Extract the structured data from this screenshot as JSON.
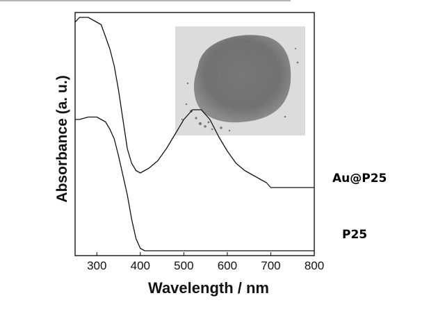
{
  "chart_data": {
    "type": "line",
    "title": "",
    "xlabel": "Wavelength / nm",
    "ylabel": "Absorbance (a. u.)",
    "xlim": [
      250,
      800
    ],
    "ylim": [
      0,
      1
    ],
    "x_ticks": [
      300,
      400,
      500,
      600,
      700,
      800
    ],
    "y_ticks": [],
    "grid": false,
    "inset": "photograph of grey powder (top-right of plot area)",
    "series": [
      {
        "name": "Au@P25",
        "x": [
          250,
          260,
          280,
          300,
          310,
          320,
          330,
          340,
          350,
          360,
          370,
          380,
          390,
          400,
          410,
          420,
          440,
          460,
          480,
          500,
          520,
          540,
          560,
          580,
          600,
          620,
          640,
          660,
          680,
          690,
          700,
          720,
          760,
          800
        ],
        "y": [
          0.96,
          0.98,
          0.98,
          0.96,
          0.95,
          0.9,
          0.85,
          0.78,
          0.68,
          0.56,
          0.44,
          0.38,
          0.35,
          0.34,
          0.35,
          0.36,
          0.39,
          0.44,
          0.5,
          0.56,
          0.6,
          0.6,
          0.56,
          0.49,
          0.43,
          0.38,
          0.35,
          0.33,
          0.31,
          0.3,
          0.28,
          0.28,
          0.28,
          0.28
        ]
      },
      {
        "name": "P25",
        "x": [
          250,
          260,
          280,
          300,
          310,
          320,
          330,
          340,
          350,
          360,
          370,
          380,
          390,
          400,
          410,
          420,
          450,
          500,
          600,
          700,
          800
        ],
        "y": [
          0.56,
          0.56,
          0.57,
          0.57,
          0.56,
          0.55,
          0.52,
          0.48,
          0.41,
          0.33,
          0.25,
          0.15,
          0.07,
          0.03,
          0.02,
          0.02,
          0.02,
          0.02,
          0.02,
          0.02,
          0.02
        ]
      }
    ]
  }
}
